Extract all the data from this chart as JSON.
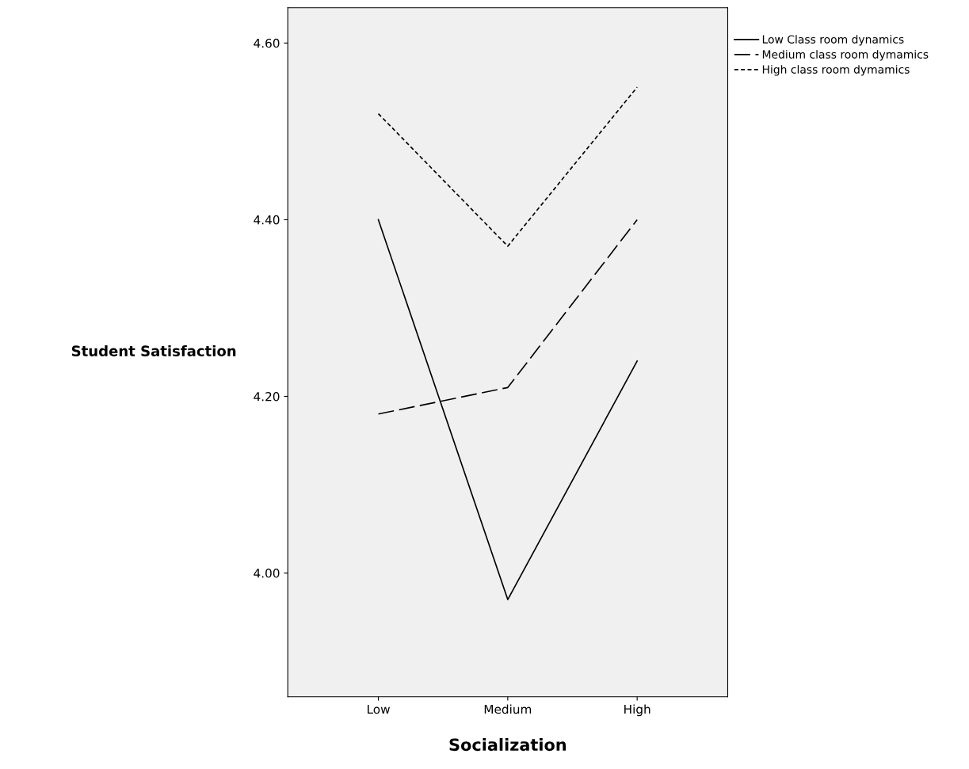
{
  "chart_data": {
    "type": "line",
    "xlabel": "Socialization",
    "ylabel": "Student Satisfaction",
    "categories": [
      "Low",
      "Medium",
      "High"
    ],
    "series": [
      {
        "name": "Low Class room dynamics",
        "color": "#000000",
        "line_style": "solid",
        "values": [
          4.4,
          3.97,
          4.24
        ]
      },
      {
        "name": "Medium class room dymamics",
        "color": "#000000",
        "line_style": "dashed",
        "values": [
          4.18,
          4.21,
          4.4
        ]
      },
      {
        "name": "High class room dymamics",
        "color": "#000000",
        "line_style": "dotted",
        "values": [
          4.52,
          4.37,
          4.55
        ]
      }
    ],
    "ylim": [
      3.86,
      4.64
    ],
    "yticks": [
      {
        "value": 4.0,
        "label": "4.00"
      },
      {
        "value": 4.2,
        "label": "4.20"
      },
      {
        "value": 4.4,
        "label": "4.40"
      },
      {
        "value": 4.6,
        "label": "4.60"
      }
    ],
    "grid": false,
    "legend": "top right",
    "marker": "none"
  }
}
